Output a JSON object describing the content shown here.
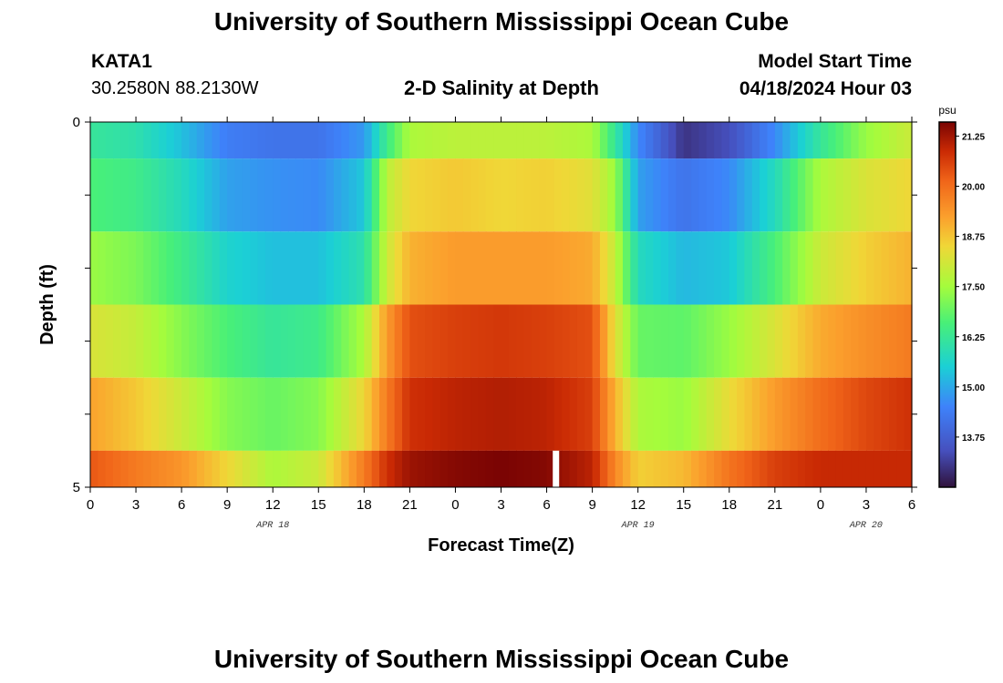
{
  "header": {
    "title": "University of Southern Mississippi Ocean Cube",
    "station": "KATA1",
    "coords": "30.2580N  88.2130W",
    "chart_title": "2-D Salinity at Depth",
    "model_label": "Model Start Time",
    "model_time": "04/18/2024 Hour 03"
  },
  "footer": {
    "title": "University of Southern Mississippi Ocean Cube"
  },
  "chart_data": {
    "type": "heatmap",
    "title": "2-D Salinity at Depth",
    "xlabel": "Forecast Time(Z)",
    "ylabel": "Depth (ft)",
    "x_tick_labels": [
      "0",
      "3",
      "6",
      "9",
      "12",
      "15",
      "18",
      "21",
      "0",
      "3",
      "6",
      "9",
      "12",
      "15",
      "18",
      "21",
      "0",
      "3",
      "6"
    ],
    "x_tick_hours": [
      0,
      3,
      6,
      9,
      12,
      15,
      18,
      21,
      24,
      27,
      30,
      33,
      36,
      39,
      42,
      45,
      48,
      51,
      54
    ],
    "xlim_hours": [
      0,
      54
    ],
    "date_labels": [
      {
        "label": "APR 18",
        "hour": 12
      },
      {
        "label": "APR 19",
        "hour": 36
      },
      {
        "label": "APR 20",
        "hour": 51
      }
    ],
    "y_tick_labels": [
      "0",
      "5"
    ],
    "ylim": [
      0,
      5
    ],
    "depth_rows": [
      0.25,
      1.25,
      2.25,
      3.25,
      4.25,
      4.75
    ],
    "row_bounds": [
      0,
      0.5,
      1.5,
      2.5,
      3.5,
      4.5,
      5
    ],
    "colorbar": {
      "unit": "psu",
      "range": [
        12.5,
        21.6
      ],
      "tick_labels": [
        "21.25",
        "20.00",
        "18.75",
        "17.50",
        "16.25",
        "15.00",
        "13.75"
      ],
      "tick_values": [
        21.25,
        20.0,
        18.75,
        17.5,
        16.25,
        15.0,
        13.75
      ]
    },
    "control_hours": [
      0,
      3,
      6,
      9,
      12,
      15,
      18,
      19.5,
      21,
      24,
      27,
      30,
      33,
      34.5,
      36,
      39,
      42,
      45,
      48,
      51,
      54
    ],
    "salinity_psu": [
      [
        16.2,
        16.0,
        15.3,
        14.4,
        14.2,
        14.2,
        14.8,
        16.4,
        17.6,
        17.8,
        17.8,
        17.8,
        17.6,
        16.2,
        14.6,
        13.0,
        13.4,
        14.6,
        16.2,
        17.4,
        18.0
      ],
      [
        16.6,
        16.4,
        15.8,
        14.9,
        14.7,
        14.6,
        15.4,
        17.8,
        18.5,
        18.7,
        18.5,
        18.6,
        18.3,
        17.4,
        14.9,
        14.2,
        14.6,
        15.8,
        17.6,
        18.2,
        18.5
      ],
      [
        17.4,
        17.1,
        16.4,
        15.6,
        15.3,
        15.3,
        16.0,
        18.0,
        19.0,
        19.3,
        19.3,
        19.3,
        19.1,
        17.9,
        15.8,
        15.2,
        15.4,
        16.6,
        18.0,
        18.6,
        19.0
      ],
      [
        18.2,
        17.9,
        17.2,
        16.6,
        16.2,
        16.4,
        17.6,
        19.3,
        20.4,
        20.6,
        20.7,
        20.6,
        20.4,
        18.3,
        16.9,
        16.8,
        17.4,
        18.2,
        19.1,
        19.5,
        19.8
      ],
      [
        19.2,
        18.7,
        18.0,
        17.2,
        16.9,
        17.2,
        18.5,
        19.8,
        20.8,
        21.0,
        21.1,
        21.0,
        20.6,
        19.0,
        17.6,
        17.4,
        18.4,
        19.3,
        20.0,
        20.5,
        20.8
      ],
      [
        20.3,
        19.8,
        19.4,
        18.5,
        17.6,
        18.0,
        19.8,
        20.8,
        21.3,
        21.5,
        21.6,
        21.5,
        21.0,
        19.6,
        18.6,
        18.9,
        19.9,
        20.6,
        20.9,
        20.9,
        20.9
      ]
    ]
  }
}
